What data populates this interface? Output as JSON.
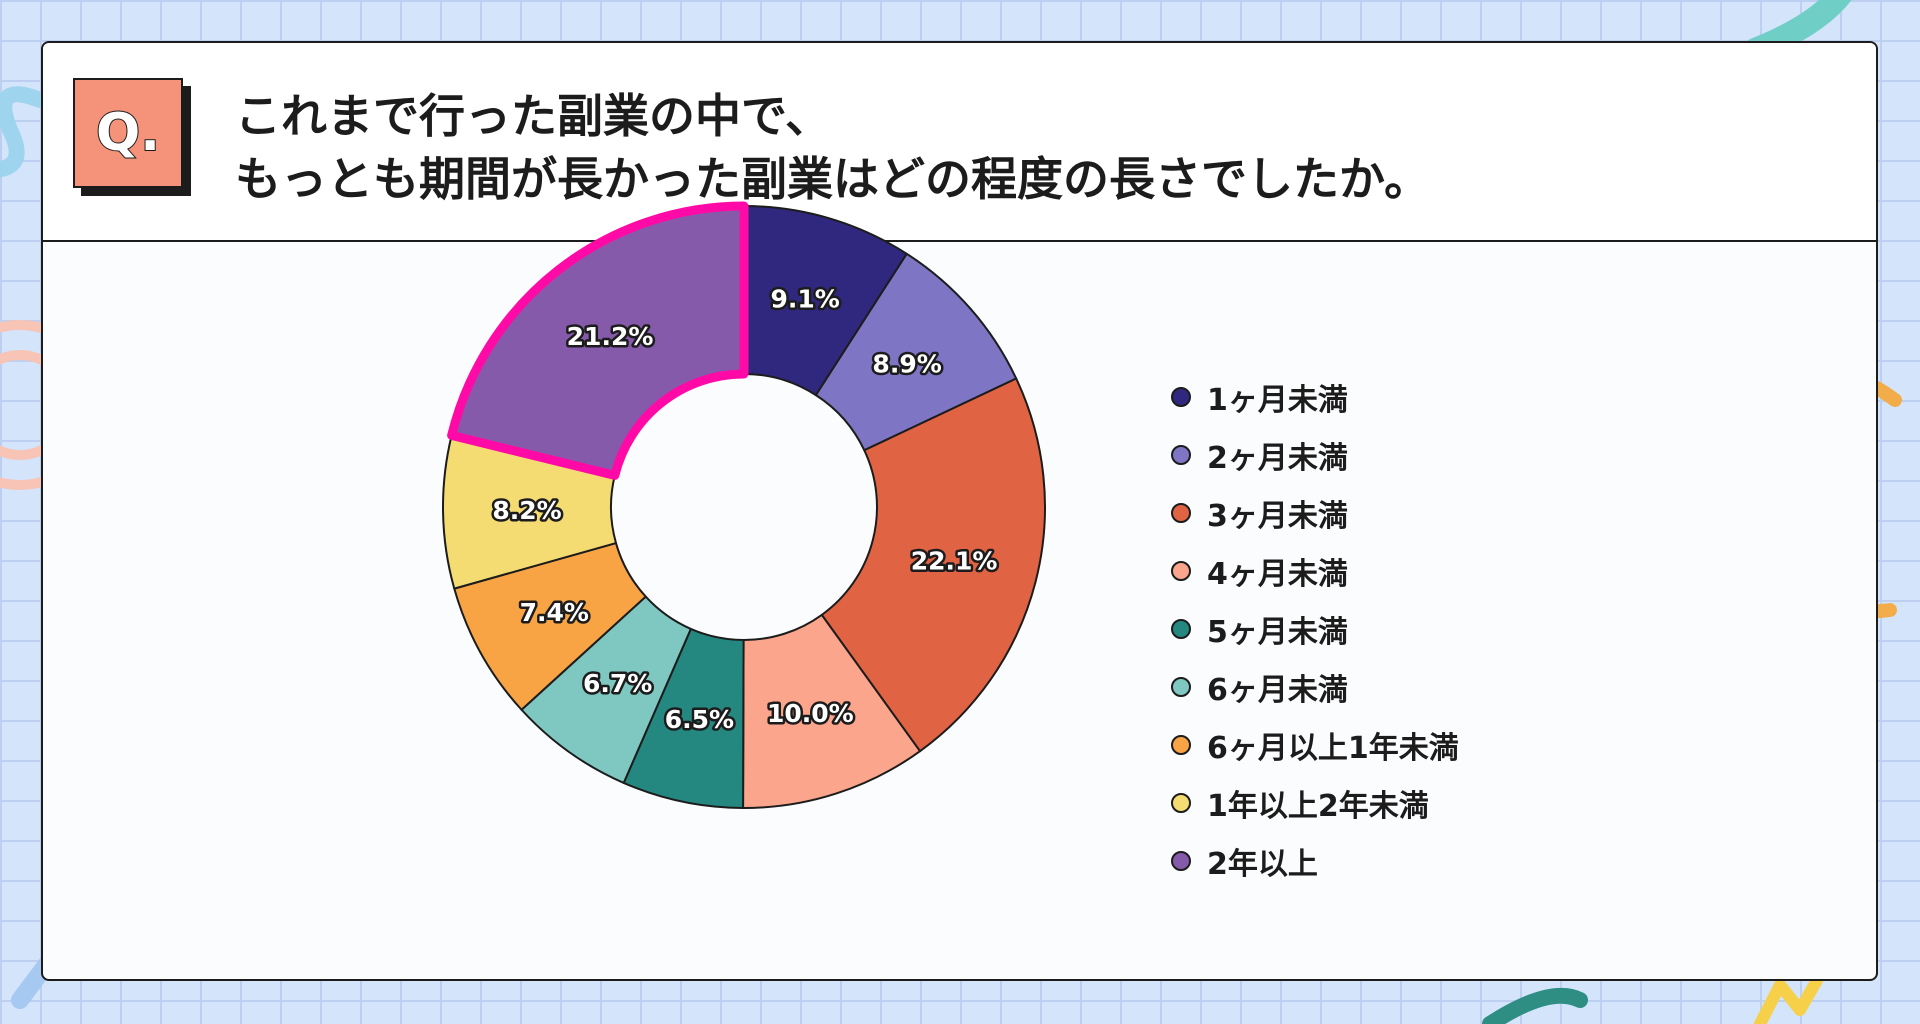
{
  "title": {
    "badge": "Q.",
    "line1": "これまで行った副業の中で、",
    "line2": "もっとも期間が長かった副業はどの程度の長さでしたか。"
  },
  "colors": {
    "background": "#d3e4fb",
    "card": "#fbfcfe",
    "badge": "#f4927a",
    "highlight": "#ff0aa6"
  },
  "chart_data": {
    "type": "pie",
    "variant": "donut",
    "categories": [
      "1ヶ月未満",
      "2ヶ月未満",
      "3ヶ月未満",
      "4ヶ月未満",
      "5ヶ月未満",
      "6ヶ月未満",
      "6ヶ月以上1年未満",
      "1年以上2年未満",
      "2年以上"
    ],
    "values": [
      9.1,
      8.9,
      22.1,
      10.0,
      6.5,
      6.7,
      7.4,
      8.2,
      21.2
    ],
    "labels": [
      "9.1%",
      "8.9%",
      "22.1%",
      "10.0%",
      "6.5%",
      "6.7%",
      "7.4%",
      "8.2%",
      "21.2%"
    ],
    "colors": [
      "#30287f",
      "#7f75c5",
      "#e06343",
      "#fba58c",
      "#248880",
      "#7fc8c2",
      "#f9a444",
      "#f5dc72",
      "#865aaa"
    ],
    "highlighted": "2年以上",
    "start": "12 o'clock, clockwise",
    "legend_position": "right"
  }
}
